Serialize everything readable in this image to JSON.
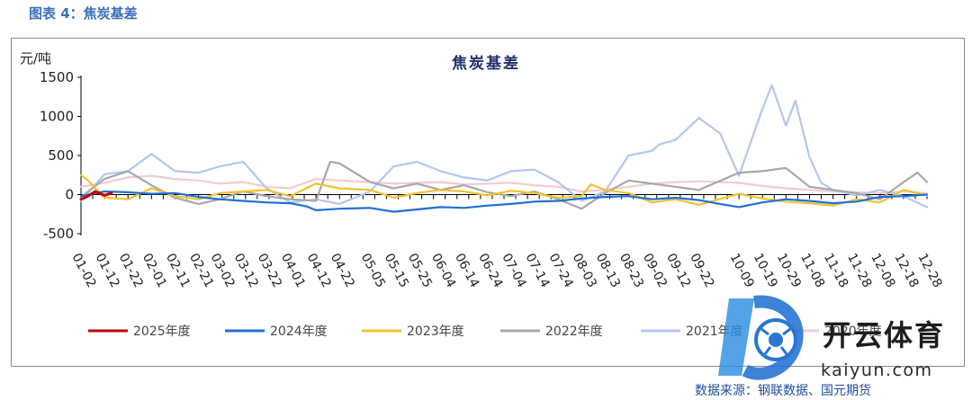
{
  "figure_label": "图表 4：焦炭基差",
  "source": "数据来源：钢联数据、国元期货",
  "watermark": {
    "brand": "开云体育",
    "domain": "kaiyun.com"
  },
  "chart_data": {
    "type": "line",
    "title": "焦炭基差",
    "ylabel": "元/吨",
    "xlabel": "",
    "ylim": [
      -500,
      1500
    ],
    "yticks": [
      -500,
      0,
      500,
      1000,
      1500
    ],
    "grid": false,
    "legend_position": "bottom",
    "x_range": [
      "01-02",
      "12-28"
    ],
    "x_ticks": [
      "01-02",
      "01-12",
      "01-22",
      "02-01",
      "02-11",
      "02-21",
      "03-02",
      "03-12",
      "03-22",
      "04-01",
      "04-12",
      "04-22",
      "05-05",
      "05-15",
      "05-25",
      "06-04",
      "06-14",
      "06-24",
      "07-04",
      "07-14",
      "07-24",
      "08-03",
      "08-13",
      "08-23",
      "09-02",
      "09-12",
      "09-22",
      "10-09",
      "10-19",
      "10-29",
      "11-08",
      "11-18",
      "11-28",
      "12-08",
      "12-18",
      "12-28"
    ],
    "series": [
      {
        "name": "2025年度",
        "color": "#c00000",
        "x": [
          "01-02",
          "01-05",
          "01-08",
          "01-12",
          "01-15"
        ],
        "y": [
          -60,
          -20,
          40,
          -10,
          20
        ]
      },
      {
        "name": "2024年度",
        "color": "#1f6fd8",
        "x": [
          "01-02",
          "01-12",
          "01-22",
          "02-01",
          "02-11",
          "02-21",
          "03-02",
          "03-12",
          "03-22",
          "04-01",
          "04-08",
          "04-12",
          "04-22",
          "05-05",
          "05-15",
          "05-25",
          "06-04",
          "06-14",
          "06-24",
          "07-04",
          "07-14",
          "07-24",
          "08-03",
          "08-13",
          "08-23",
          "09-02",
          "09-12",
          "09-22",
          "10-01",
          "10-09",
          "10-19",
          "10-29",
          "11-08",
          "11-18",
          "11-28",
          "12-08",
          "12-18",
          "12-28"
        ],
        "y": [
          -20,
          40,
          30,
          10,
          20,
          -30,
          -60,
          -80,
          -100,
          -110,
          -150,
          -200,
          -180,
          -170,
          -220,
          -190,
          -160,
          -170,
          -140,
          -120,
          -90,
          -80,
          -50,
          -30,
          -20,
          -60,
          -40,
          -70,
          -120,
          -160,
          -100,
          -60,
          -80,
          -110,
          -90,
          -30,
          -20,
          0
        ]
      },
      {
        "name": "2023年度",
        "color": "#f2c12e",
        "x": [
          "01-02",
          "01-05",
          "01-12",
          "01-22",
          "02-01",
          "02-11",
          "02-21",
          "03-02",
          "03-12",
          "03-22",
          "04-01",
          "04-12",
          "04-22",
          "05-05",
          "05-15",
          "05-25",
          "06-04",
          "06-14",
          "06-24",
          "07-04",
          "07-14",
          "07-24",
          "08-03",
          "08-07",
          "08-13",
          "08-23",
          "09-02",
          "09-12",
          "09-22",
          "10-09",
          "10-19",
          "10-29",
          "11-08",
          "11-18",
          "11-28",
          "12-08",
          "12-18",
          "12-28"
        ],
        "y": [
          250,
          180,
          -40,
          -60,
          80,
          -20,
          -60,
          20,
          40,
          60,
          -20,
          140,
          80,
          60,
          -40,
          20,
          60,
          40,
          -10,
          50,
          20,
          -40,
          -20,
          130,
          60,
          20,
          -100,
          -60,
          -130,
          10,
          -50,
          -90,
          -110,
          -140,
          -60,
          -100,
          60,
          -10
        ]
      },
      {
        "name": "2022年度",
        "color": "#a8a8a8",
        "x": [
          "01-02",
          "01-12",
          "01-22",
          "02-01",
          "02-11",
          "02-21",
          "03-02",
          "03-12",
          "03-22",
          "04-01",
          "04-12",
          "04-18",
          "04-22",
          "05-05",
          "05-15",
          "05-25",
          "06-04",
          "06-14",
          "06-24",
          "07-04",
          "07-14",
          "07-24",
          "08-03",
          "08-13",
          "08-23",
          "09-02",
          "09-12",
          "09-22",
          "10-09",
          "10-19",
          "10-29",
          "11-08",
          "11-18",
          "11-28",
          "12-08",
          "12-18",
          "12-24",
          "12-28"
        ],
        "y": [
          -30,
          200,
          300,
          120,
          -40,
          -120,
          -60,
          40,
          -20,
          -60,
          -80,
          420,
          400,
          160,
          80,
          140,
          60,
          120,
          30,
          -20,
          40,
          -60,
          -180,
          20,
          180,
          140,
          100,
          60,
          280,
          300,
          340,
          100,
          60,
          20,
          -60,
          160,
          280,
          160
        ]
      },
      {
        "name": "2021年度",
        "color": "#b4c6ee",
        "x": [
          "01-02",
          "01-12",
          "01-22",
          "02-01",
          "02-11",
          "02-21",
          "03-02",
          "03-12",
          "03-22",
          "04-01",
          "04-12",
          "04-22",
          "05-05",
          "05-15",
          "05-25",
          "06-04",
          "06-14",
          "06-24",
          "07-04",
          "07-14",
          "07-24",
          "08-03",
          "08-13",
          "08-23",
          "09-02",
          "09-05",
          "09-12",
          "09-22",
          "10-01",
          "10-09",
          "10-19",
          "10-23",
          "10-29",
          "11-02",
          "11-08",
          "11-13",
          "11-18",
          "11-28",
          "12-08",
          "12-18",
          "12-28"
        ],
        "y": [
          -80,
          260,
          300,
          520,
          300,
          280,
          360,
          420,
          80,
          -100,
          -60,
          -120,
          40,
          360,
          420,
          300,
          220,
          180,
          300,
          320,
          160,
          -80,
          40,
          500,
          560,
          640,
          700,
          980,
          780,
          240,
          1100,
          1400,
          880,
          1200,
          480,
          150,
          60,
          -10,
          60,
          -20,
          -160
        ]
      },
      {
        "name": "2020年度",
        "color": "#f2cbd0",
        "x": [
          "01-02",
          "01-12",
          "01-22",
          "02-01",
          "02-11",
          "02-21",
          "03-02",
          "03-12",
          "03-22",
          "04-01",
          "04-12",
          "04-22",
          "05-05",
          "05-15",
          "05-25",
          "06-04",
          "06-14",
          "06-24",
          "07-04",
          "07-14",
          "07-24",
          "08-03",
          "08-13",
          "08-23",
          "09-02",
          "09-12",
          "09-22",
          "10-09",
          "10-19",
          "10-29",
          "11-08",
          "11-18",
          "11-28",
          "12-08",
          "12-18",
          "12-28"
        ],
        "y": [
          100,
          150,
          220,
          240,
          200,
          180,
          140,
          160,
          100,
          80,
          200,
          180,
          160,
          140,
          150,
          160,
          130,
          140,
          150,
          120,
          100,
          40,
          60,
          100,
          140,
          160,
          170,
          150,
          110,
          80,
          60,
          40,
          30,
          20,
          40,
          20
        ]
      }
    ]
  }
}
